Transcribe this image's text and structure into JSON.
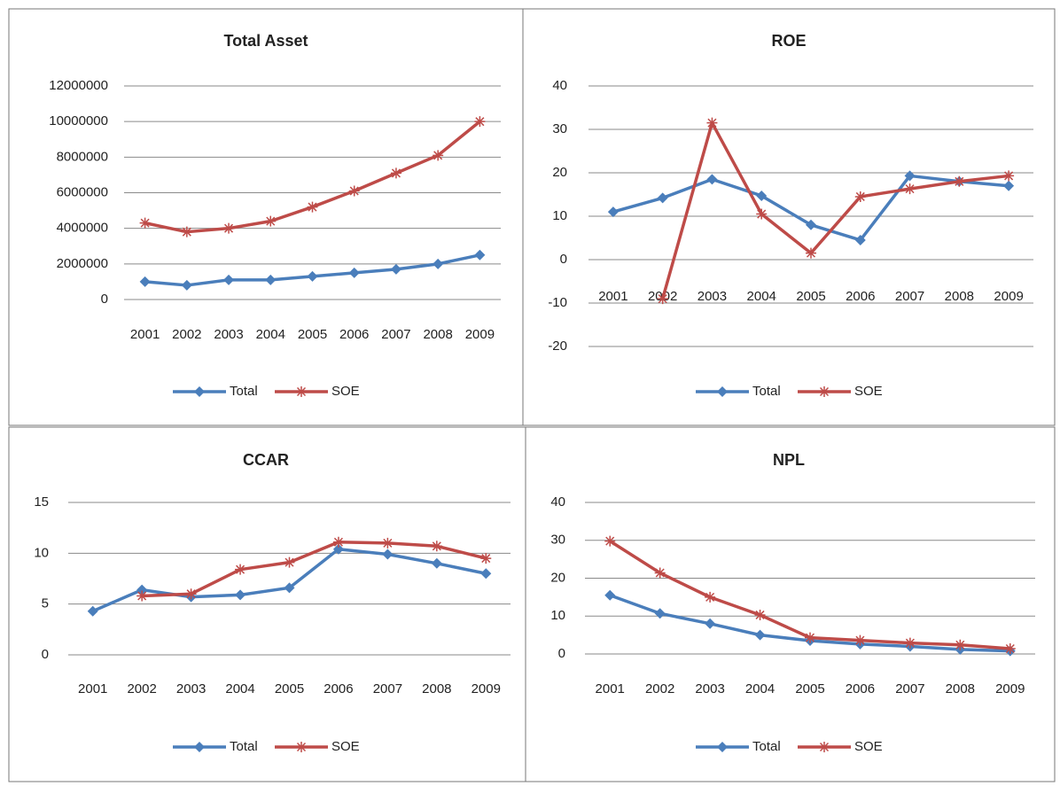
{
  "chart_data": [
    {
      "type": "line",
      "title": "Total Asset",
      "categories": [
        "2001",
        "2002",
        "2003",
        "2004",
        "2005",
        "2006",
        "2007",
        "2008",
        "2009"
      ],
      "series": [
        {
          "name": "Total",
          "color": "#4a7ebb",
          "values": [
            1000000,
            800000,
            1100000,
            1100000,
            1300000,
            1500000,
            1700000,
            2000000,
            2500000
          ]
        },
        {
          "name": "SOE",
          "color": "#be4b48",
          "values": [
            4300000,
            3800000,
            4000000,
            4400000,
            5200000,
            6100000,
            7100000,
            8100000,
            10000000
          ]
        }
      ],
      "ylim": [
        0,
        12000000
      ],
      "yticks": [
        0,
        2000000,
        4000000,
        6000000,
        8000000,
        10000000,
        12000000
      ],
      "grid": true,
      "legend": "bottom"
    },
    {
      "type": "line",
      "title": "ROE",
      "categories": [
        "2001",
        "2002",
        "2003",
        "2004",
        "2005",
        "2006",
        "2007",
        "2008",
        "2009"
      ],
      "series": [
        {
          "name": "Total",
          "color": "#4a7ebb",
          "values": [
            11,
            14.2,
            18.5,
            14.7,
            8,
            4.5,
            19.3,
            18,
            17
          ]
        },
        {
          "name": "SOE",
          "color": "#be4b48",
          "values": [
            null,
            -9,
            31.5,
            10.5,
            1.5,
            14.5,
            16.3,
            18,
            19.3
          ]
        }
      ],
      "ylim": [
        -20,
        40
      ],
      "yticks": [
        -20,
        -10,
        0,
        10,
        20,
        30,
        40
      ],
      "grid": true,
      "legend": "bottom"
    },
    {
      "type": "line",
      "title": "CCAR",
      "categories": [
        "2001",
        "2002",
        "2003",
        "2004",
        "2005",
        "2006",
        "2007",
        "2008",
        "2009"
      ],
      "series": [
        {
          "name": "Total",
          "color": "#4a7ebb",
          "values": [
            4.3,
            6.4,
            5.7,
            5.9,
            6.6,
            10.4,
            9.9,
            9,
            8
          ]
        },
        {
          "name": "SOE",
          "color": "#be4b48",
          "values": [
            null,
            5.8,
            6,
            8.4,
            9.1,
            11.1,
            11,
            10.7,
            9.5
          ]
        }
      ],
      "ylim": [
        0,
        15
      ],
      "yticks": [
        0,
        5,
        10,
        15
      ],
      "grid": true,
      "legend": "bottom"
    },
    {
      "type": "line",
      "title": "NPL",
      "categories": [
        "2001",
        "2002",
        "2003",
        "2004",
        "2005",
        "2006",
        "2007",
        "2008",
        "2009"
      ],
      "series": [
        {
          "name": "Total",
          "color": "#4a7ebb",
          "values": [
            15.5,
            10.7,
            8,
            5,
            3.5,
            2.6,
            2,
            1.2,
            0.8
          ]
        },
        {
          "name": "SOE",
          "color": "#be4b48",
          "values": [
            29.8,
            21.4,
            15,
            10.3,
            4.3,
            3.6,
            2.9,
            2.4,
            1.4
          ]
        }
      ],
      "ylim": [
        0,
        40
      ],
      "yticks": [
        0,
        10,
        20,
        30,
        40
      ],
      "grid": true,
      "legend": "bottom"
    }
  ]
}
